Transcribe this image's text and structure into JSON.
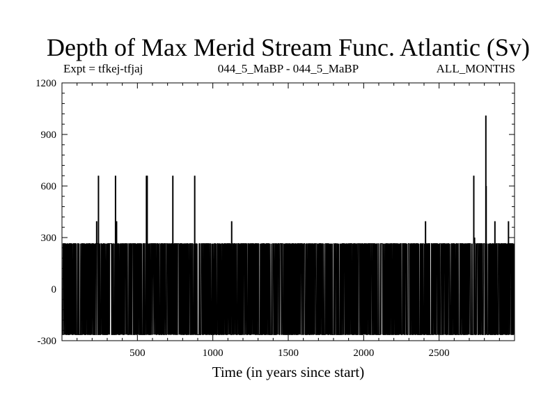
{
  "chart_data": {
    "type": "line",
    "title": "Depth of Max Merid Stream Func. Atlantic (Sv)",
    "subtitle_left": "Expt = tfkej-tfjaj",
    "subtitle_center": "044_5_MaBP - 044_5_MaBP",
    "subtitle_right": "ALL_MONTHS",
    "xlabel": "Time (in years since start)",
    "ylabel": "",
    "xlim": [
      0,
      3000
    ],
    "ylim": [
      -300,
      1200
    ],
    "xticks": [
      500,
      1000,
      1500,
      2000,
      2500
    ],
    "yticks": [
      -300,
      0,
      300,
      600,
      900,
      1200
    ],
    "grid": false,
    "series": [
      {
        "color": "#000000",
        "base_high": 265,
        "base_low": -265,
        "spikes": [
          {
            "x": 230,
            "y": 395
          },
          {
            "x": 242,
            "y": 660
          },
          {
            "x": 355,
            "y": 660
          },
          {
            "x": 362,
            "y": 395
          },
          {
            "x": 560,
            "y": 660
          },
          {
            "x": 565,
            "y": 660
          },
          {
            "x": 735,
            "y": 660
          },
          {
            "x": 880,
            "y": 660
          },
          {
            "x": 1125,
            "y": 395
          },
          {
            "x": 2410,
            "y": 395
          },
          {
            "x": 2730,
            "y": 660
          },
          {
            "x": 2735,
            "y": 300
          },
          {
            "x": 2810,
            "y": 1010
          },
          {
            "x": 2812,
            "y": 600
          },
          {
            "x": 2870,
            "y": 395
          },
          {
            "x": 2960,
            "y": 395
          }
        ]
      }
    ]
  }
}
